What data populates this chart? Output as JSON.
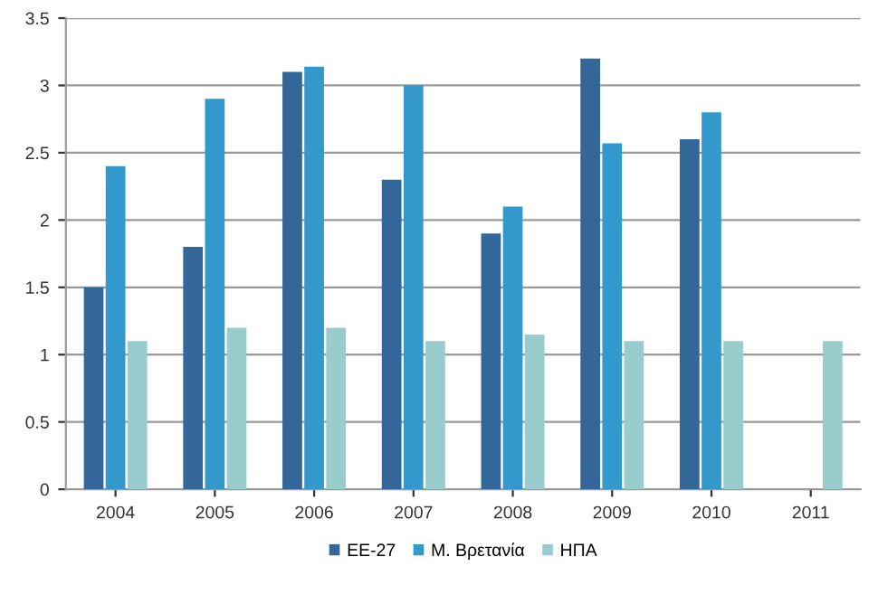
{
  "chart_data": {
    "type": "bar",
    "categories": [
      "2004",
      "2005",
      "2006",
      "2007",
      "2008",
      "2009",
      "2010",
      "2011"
    ],
    "series": [
      {
        "name": "ΕΕ-27",
        "color": "#336699",
        "values": [
          1.5,
          1.8,
          3.1,
          2.3,
          1.9,
          3.2,
          2.6,
          null
        ]
      },
      {
        "name": "Μ. Βρετανία",
        "color": "#3399cc",
        "values": [
          2.4,
          2.9,
          3.14,
          3.0,
          2.1,
          2.57,
          2.8,
          null
        ]
      },
      {
        "name": "ΗΠΑ",
        "color": "#99cccc",
        "values": [
          1.1,
          1.2,
          1.2,
          1.1,
          1.15,
          1.1,
          1.1,
          1.1
        ]
      }
    ],
    "ylim": [
      0,
      3.5
    ],
    "yticks": [
      0,
      0.5,
      1,
      1.5,
      2,
      2.5,
      3,
      3.5
    ],
    "grid": "y",
    "legend": "bottom"
  }
}
